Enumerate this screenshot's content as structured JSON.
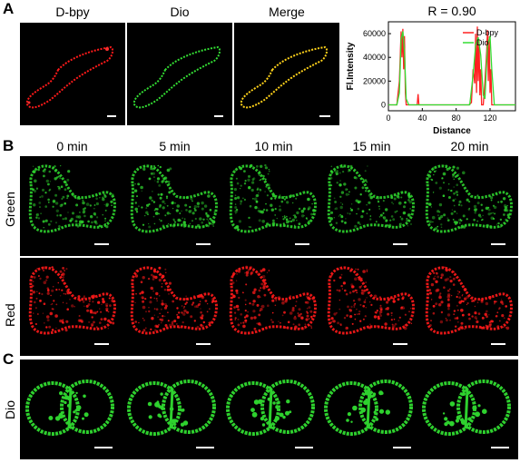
{
  "panel_labels": {
    "a": "A",
    "b": "B",
    "c": "C"
  },
  "row_a": {
    "images": [
      {
        "label": "D-bpy",
        "color": "#ff1a1a"
      },
      {
        "label": "Dio",
        "color": "#33dd33"
      },
      {
        "label": "Merge",
        "color": "#ffd21a"
      }
    ]
  },
  "row_b": {
    "times": [
      "0 min",
      "5 min",
      "10 min",
      "15 min",
      "20 min"
    ],
    "row_labels": {
      "green": "Green",
      "red": "Red"
    }
  },
  "row_c": {
    "row_label": "Dio"
  },
  "colors": {
    "green": "#2ed12e",
    "red": "#ff1a1a",
    "merge": "#ffd21a"
  },
  "chart_data": {
    "type": "line",
    "title": "R = 0.90",
    "xlabel": "Distance",
    "ylabel": "Fl.Intensity",
    "xlim": [
      0,
      150
    ],
    "ylim": [
      -5000,
      70000
    ],
    "xticks": [
      0,
      40,
      80,
      120
    ],
    "yticks": [
      0,
      20000,
      40000,
      60000
    ],
    "ytick_labels": [
      "0",
      "20000",
      "40000",
      "60000"
    ],
    "series": [
      {
        "name": "D-bpy",
        "color": "#ff2020",
        "x": [
          0,
          10,
          13,
          15,
          16,
          17,
          18,
          19,
          20,
          21,
          22,
          24,
          28,
          34,
          35,
          36,
          40,
          60,
          80,
          95,
          98,
          100,
          102,
          103,
          104,
          105,
          106,
          107,
          108,
          109,
          110,
          112,
          114,
          116,
          117,
          118,
          119,
          120,
          121,
          122,
          124,
          126,
          130,
          140,
          150
        ],
        "y": [
          0,
          0,
          20000,
          62000,
          40000,
          64000,
          30000,
          58000,
          10000,
          0,
          0,
          0,
          0,
          0,
          9000,
          0,
          0,
          0,
          0,
          0,
          2000,
          30000,
          18000,
          60000,
          10000,
          66000,
          20000,
          55000,
          8000,
          30000,
          0,
          0,
          20000,
          45000,
          63000,
          20000,
          58000,
          10000,
          30000,
          0,
          0,
          0,
          0,
          0,
          0
        ]
      },
      {
        "name": "Dio",
        "color": "#33dd33",
        "x": [
          0,
          10,
          13,
          15,
          17,
          19,
          21,
          24,
          30,
          40,
          60,
          80,
          96,
          100,
          103,
          106,
          109,
          112,
          114,
          117,
          120,
          122,
          125,
          130,
          140,
          150
        ],
        "y": [
          0,
          0,
          10000,
          55000,
          62000,
          45000,
          5000,
          0,
          0,
          0,
          0,
          0,
          0,
          25000,
          50000,
          57000,
          42000,
          8000,
          5000,
          50000,
          58000,
          30000,
          0,
          0,
          0,
          0
        ]
      }
    ]
  }
}
